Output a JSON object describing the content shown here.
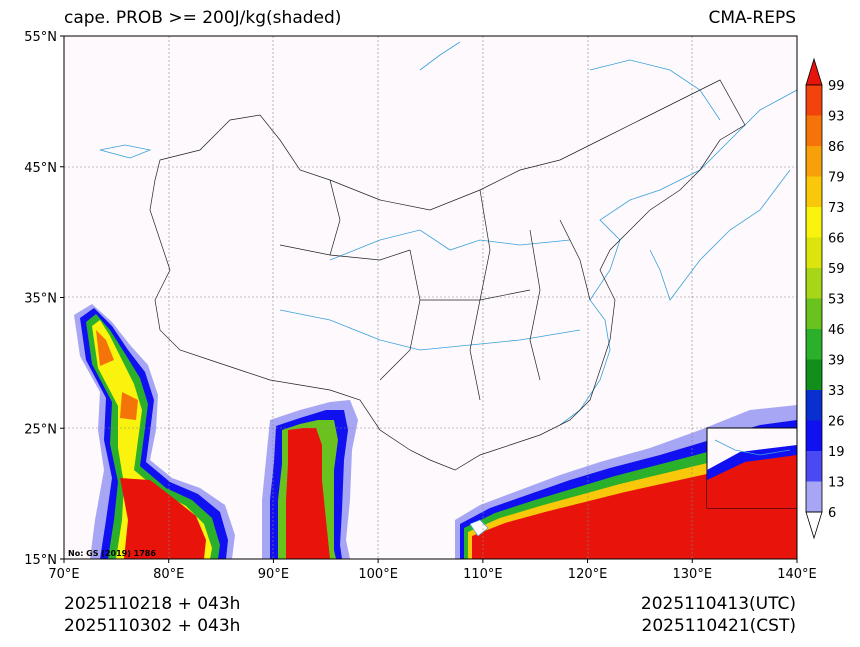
{
  "title": {
    "left": "cape. PROB >= 200J/kg(shaded)",
    "right": "CMA-REPS"
  },
  "footer": {
    "init_utc": "2025110218  +  043h",
    "init_cst": "2025110302  +  043h",
    "valid_utc": "2025110413(UTC)",
    "valid_cst": "2025110421(CST)"
  },
  "map": {
    "lon_range": [
      70,
      140
    ],
    "lat_range": [
      15,
      55
    ],
    "lon_ticks": [
      {
        "value": 70,
        "label": "70°E"
      },
      {
        "value": 80,
        "label": "80°E"
      },
      {
        "value": 90,
        "label": "90°E"
      },
      {
        "value": 100,
        "label": "100°E"
      },
      {
        "value": 110,
        "label": "110°E"
      },
      {
        "value": 120,
        "label": "120°E"
      },
      {
        "value": 130,
        "label": "130°E"
      },
      {
        "value": 140,
        "label": "140°E"
      }
    ],
    "lat_ticks": [
      {
        "value": 15,
        "label": "15°N"
      },
      {
        "value": 25,
        "label": "25°N"
      },
      {
        "value": 35,
        "label": "35°N"
      },
      {
        "value": 45,
        "label": "45°N"
      },
      {
        "value": 55,
        "label": "55°N"
      }
    ],
    "credit": "No: GS (2019) 1786",
    "colors": {
      "background": "#fdf9fd",
      "border": "#222222",
      "river": "#3aa0d8",
      "grid": "#888888"
    }
  },
  "colorbar": {
    "labels": [
      "6",
      "13",
      "19",
      "26",
      "33",
      "39",
      "46",
      "53",
      "59",
      "66",
      "73",
      "79",
      "86",
      "93",
      "99"
    ],
    "colors": [
      "#ffffff",
      "#a6a6f5",
      "#4a4af5",
      "#1010f0",
      "#0a2fd0",
      "#118f1a",
      "#2ab02a",
      "#6ac21e",
      "#a6d615",
      "#dde30c",
      "#f9f30d",
      "#f9c80a",
      "#f7a00a",
      "#f5740a",
      "#f2430c",
      "#e8140c"
    ]
  }
}
